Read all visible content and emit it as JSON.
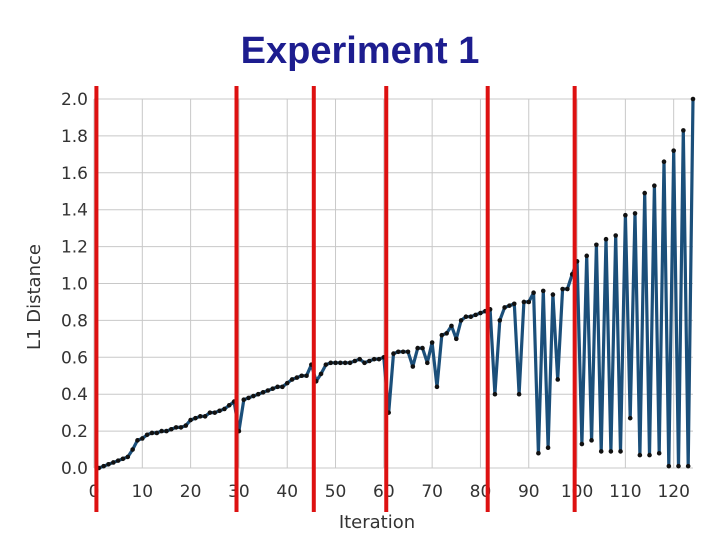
{
  "slide": {
    "title": "Experiment 1"
  },
  "colors": {
    "title": "#1d1d8f",
    "series": "#1b4f7a",
    "marker": "#111111",
    "markers_red": "#dd1111",
    "grid": "#c8c8c8"
  },
  "chart_data": {
    "type": "line",
    "title": "Experiment 1",
    "xlabel": "Iteration",
    "ylabel": "L1 Distance",
    "xlim": [
      0,
      124
    ],
    "ylim": [
      0,
      2.0
    ],
    "xticks": [
      0,
      10,
      20,
      30,
      40,
      50,
      60,
      70,
      80,
      90,
      100,
      110,
      120
    ],
    "xtick_labels": [
      "0",
      "10",
      "20",
      "30",
      "40",
      "50",
      "60",
      "70",
      "80",
      "90",
      "100",
      "110",
      "120"
    ],
    "yticks": [
      0,
      0.2,
      0.4,
      0.6,
      0.8,
      1.0,
      1.2,
      1.4,
      1.6,
      1.8,
      2.0
    ],
    "ytick_labels": [
      "0.0",
      "0.2",
      "0.4",
      "0.6",
      "0.8",
      "1.0",
      "1.2",
      "1.4",
      "1.6",
      "1.8",
      "2.0"
    ],
    "grid": true,
    "vertical_markers": [
      0.5,
      29.5,
      45.5,
      60.5,
      81.5,
      99.5
    ],
    "series": [
      {
        "values": [
          [
            1,
            0.0
          ],
          [
            2,
            0.01
          ],
          [
            3,
            0.02
          ],
          [
            4,
            0.03
          ],
          [
            5,
            0.04
          ],
          [
            6,
            0.05
          ],
          [
            7,
            0.06
          ],
          [
            8,
            0.1
          ],
          [
            9,
            0.15
          ],
          [
            10,
            0.16
          ],
          [
            11,
            0.18
          ],
          [
            12,
            0.19
          ],
          [
            13,
            0.19
          ],
          [
            14,
            0.2
          ],
          [
            15,
            0.2
          ],
          [
            16,
            0.21
          ],
          [
            17,
            0.22
          ],
          [
            18,
            0.22
          ],
          [
            19,
            0.23
          ],
          [
            20,
            0.26
          ],
          [
            21,
            0.27
          ],
          [
            22,
            0.28
          ],
          [
            23,
            0.28
          ],
          [
            24,
            0.3
          ],
          [
            25,
            0.3
          ],
          [
            26,
            0.31
          ],
          [
            27,
            0.32
          ],
          [
            28,
            0.34
          ],
          [
            29,
            0.36
          ],
          [
            30,
            0.2
          ],
          [
            31,
            0.37
          ],
          [
            32,
            0.38
          ],
          [
            33,
            0.39
          ],
          [
            34,
            0.4
          ],
          [
            35,
            0.41
          ],
          [
            36,
            0.42
          ],
          [
            37,
            0.43
          ],
          [
            38,
            0.44
          ],
          [
            39,
            0.44
          ],
          [
            40,
            0.46
          ],
          [
            41,
            0.48
          ],
          [
            42,
            0.49
          ],
          [
            43,
            0.5
          ],
          [
            44,
            0.5
          ],
          [
            45,
            0.56
          ],
          [
            46,
            0.47
          ],
          [
            47,
            0.51
          ],
          [
            48,
            0.56
          ],
          [
            49,
            0.57
          ],
          [
            50,
            0.57
          ],
          [
            51,
            0.57
          ],
          [
            52,
            0.57
          ],
          [
            53,
            0.57
          ],
          [
            54,
            0.58
          ],
          [
            55,
            0.59
          ],
          [
            56,
            0.57
          ],
          [
            57,
            0.58
          ],
          [
            58,
            0.59
          ],
          [
            59,
            0.59
          ],
          [
            60,
            0.6
          ],
          [
            61,
            0.3
          ],
          [
            62,
            0.62
          ],
          [
            63,
            0.63
          ],
          [
            64,
            0.63
          ],
          [
            65,
            0.63
          ],
          [
            66,
            0.55
          ],
          [
            67,
            0.65
          ],
          [
            68,
            0.65
          ],
          [
            69,
            0.57
          ],
          [
            70,
            0.68
          ],
          [
            71,
            0.44
          ],
          [
            72,
            0.72
          ],
          [
            73,
            0.73
          ],
          [
            74,
            0.77
          ],
          [
            75,
            0.7
          ],
          [
            76,
            0.8
          ],
          [
            77,
            0.82
          ],
          [
            78,
            0.82
          ],
          [
            79,
            0.83
          ],
          [
            80,
            0.84
          ],
          [
            81,
            0.85
          ],
          [
            82,
            0.86
          ],
          [
            83,
            0.4
          ],
          [
            84,
            0.8
          ],
          [
            85,
            0.87
          ],
          [
            86,
            0.88
          ],
          [
            87,
            0.89
          ],
          [
            88,
            0.4
          ],
          [
            89,
            0.9
          ],
          [
            90,
            0.9
          ],
          [
            91,
            0.95
          ],
          [
            92,
            0.08
          ],
          [
            93,
            0.96
          ],
          [
            94,
            0.11
          ],
          [
            95,
            0.94
          ],
          [
            96,
            0.48
          ],
          [
            97,
            0.97
          ],
          [
            98,
            0.97
          ],
          [
            99,
            1.05
          ],
          [
            100,
            1.12
          ],
          [
            101,
            0.13
          ],
          [
            102,
            1.15
          ],
          [
            103,
            0.15
          ],
          [
            104,
            1.21
          ],
          [
            105,
            0.09
          ],
          [
            106,
            1.24
          ],
          [
            107,
            0.09
          ],
          [
            108,
            1.26
          ],
          [
            109,
            0.09
          ],
          [
            110,
            1.37
          ],
          [
            111,
            0.27
          ],
          [
            112,
            1.38
          ],
          [
            113,
            0.07
          ],
          [
            114,
            1.49
          ],
          [
            115,
            0.07
          ],
          [
            116,
            1.53
          ],
          [
            117,
            0.08
          ],
          [
            118,
            1.66
          ],
          [
            119,
            0.01
          ],
          [
            120,
            1.72
          ],
          [
            121,
            0.01
          ],
          [
            122,
            1.83
          ],
          [
            123,
            0.01
          ],
          [
            124,
            2.0
          ]
        ]
      }
    ]
  }
}
